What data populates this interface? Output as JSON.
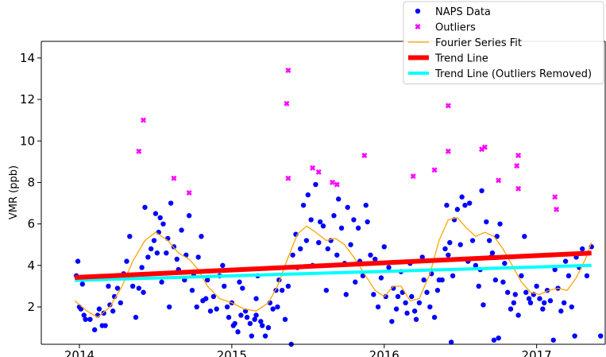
{
  "chart_data": {
    "type": "scatter",
    "title": "",
    "xlabel": "",
    "ylabel": "VMR (ppb)",
    "xlim": [
      2013.75,
      2017.45
    ],
    "ylim": [
      0.2,
      14.8
    ],
    "x_ticks": [
      2014,
      2015,
      2016,
      2017
    ],
    "x_tick_labels": [
      "2014",
      "2015",
      "2016",
      "2017"
    ],
    "y_ticks": [
      2,
      4,
      6,
      8,
      10,
      12,
      14
    ],
    "y_tick_labels": [
      "2",
      "4",
      "6",
      "8",
      "10",
      "12",
      "14"
    ],
    "grid": false,
    "legend_position": "top-right",
    "colors": {
      "naps": "#0000ff",
      "outliers": "#ff00ff",
      "fourier": "#ffa500",
      "trend": "#ff0000",
      "trend_removed": "#00ffff"
    },
    "series": [
      {
        "name": "NAPS Data",
        "kind": "scatter",
        "points": [
          [
            2013.98,
            3.5
          ],
          [
            2013.99,
            4.2
          ],
          [
            2014.0,
            2.0
          ],
          [
            2014.01,
            1.9
          ],
          [
            2014.02,
            3.1
          ],
          [
            2014.03,
            1.6
          ],
          [
            2014.04,
            1.4
          ],
          [
            2014.07,
            1.4
          ],
          [
            2014.1,
            0.9
          ],
          [
            2014.12,
            1.6
          ],
          [
            2014.13,
            1.9
          ],
          [
            2014.15,
            1.1
          ],
          [
            2014.16,
            1.7
          ],
          [
            2014.17,
            1.1
          ],
          [
            2014.19,
            3.0
          ],
          [
            2014.2,
            2.1
          ],
          [
            2014.22,
            1.8
          ],
          [
            2014.23,
            2.5
          ],
          [
            2014.25,
            2.9
          ],
          [
            2014.27,
            2.2
          ],
          [
            2014.29,
            3.6
          ],
          [
            2014.31,
            4.2
          ],
          [
            2014.33,
            5.4
          ],
          [
            2014.35,
            3.0
          ],
          [
            2014.37,
            1.5
          ],
          [
            2014.39,
            2.9
          ],
          [
            2014.41,
            3.9
          ],
          [
            2014.42,
            2.7
          ],
          [
            2014.43,
            6.8
          ],
          [
            2014.45,
            4.4
          ],
          [
            2014.47,
            4.8
          ],
          [
            2014.49,
            5.2
          ],
          [
            2014.5,
            6.5
          ],
          [
            2014.51,
            4.6
          ],
          [
            2014.52,
            5.6
          ],
          [
            2014.53,
            6.3
          ],
          [
            2014.54,
            3.2
          ],
          [
            2014.55,
            6.0
          ],
          [
            2014.57,
            4.6
          ],
          [
            2014.58,
            5.3
          ],
          [
            2014.59,
            2.0
          ],
          [
            2014.6,
            7.0
          ],
          [
            2014.62,
            4.9
          ],
          [
            2014.64,
            4.3
          ],
          [
            2014.65,
            3.8
          ],
          [
            2014.67,
            5.7
          ],
          [
            2014.69,
            3.3
          ],
          [
            2014.7,
            4.5
          ],
          [
            2014.72,
            6.4
          ],
          [
            2014.74,
            2.8
          ],
          [
            2014.75,
            3.5
          ],
          [
            2014.77,
            2.0
          ],
          [
            2014.78,
            4.4
          ],
          [
            2014.8,
            5.4
          ],
          [
            2014.81,
            2.3
          ],
          [
            2014.83,
            2.4
          ],
          [
            2014.84,
            3.3
          ],
          [
            2014.86,
            1.8
          ],
          [
            2014.88,
            2.5
          ],
          [
            2014.9,
            1.9
          ],
          [
            2014.92,
            3.5
          ],
          [
            2014.94,
            4.0
          ],
          [
            2014.95,
            3.0
          ],
          [
            2014.97,
            2.0
          ],
          [
            2014.98,
            1.5
          ],
          [
            2015.0,
            2.2
          ],
          [
            2015.01,
            1.1
          ],
          [
            2015.02,
            1.2
          ],
          [
            2015.04,
            0.8
          ],
          [
            2015.05,
            3.2
          ],
          [
            2015.06,
            1.6
          ],
          [
            2015.07,
            2.9
          ],
          [
            2015.09,
            1.8
          ],
          [
            2015.1,
            1.5
          ],
          [
            2015.12,
            1.2
          ],
          [
            2015.13,
            0.6
          ],
          [
            2015.15,
            1.4
          ],
          [
            2015.16,
            2.4
          ],
          [
            2015.17,
            3.5
          ],
          [
            2015.19,
            1.3
          ],
          [
            2015.2,
            1.1
          ],
          [
            2015.22,
            0.6
          ],
          [
            2015.24,
            1.0
          ],
          [
            2015.25,
            2.2
          ],
          [
            2015.27,
            1.9
          ],
          [
            2015.29,
            2.8
          ],
          [
            2015.3,
            2.0
          ],
          [
            2015.31,
            3.3
          ],
          [
            2015.33,
            2.8
          ],
          [
            2015.35,
            1.4
          ],
          [
            2015.37,
            3.0
          ],
          [
            2015.39,
            0.2
          ],
          [
            2015.4,
            4.5
          ],
          [
            2015.42,
            5.5
          ],
          [
            2015.43,
            3.9
          ],
          [
            2015.45,
            4.8
          ],
          [
            2015.47,
            6.9
          ],
          [
            2015.49,
            5.2
          ],
          [
            2015.5,
            7.4
          ],
          [
            2015.52,
            6.2
          ],
          [
            2015.53,
            4.0
          ],
          [
            2015.55,
            7.9
          ],
          [
            2015.57,
            5.1
          ],
          [
            2015.58,
            6.1
          ],
          [
            2015.6,
            5.9
          ],
          [
            2015.62,
            2.8
          ],
          [
            2015.63,
            4.8
          ],
          [
            2015.65,
            5.2
          ],
          [
            2015.67,
            6.4
          ],
          [
            2015.69,
            4.5
          ],
          [
            2015.7,
            7.2
          ],
          [
            2015.72,
            5.8
          ],
          [
            2015.74,
            4.1
          ],
          [
            2015.75,
            2.6
          ],
          [
            2015.76,
            6.8
          ],
          [
            2015.78,
            5.0
          ],
          [
            2015.8,
            6.2
          ],
          [
            2015.81,
            3.2
          ],
          [
            2015.83,
            5.8
          ],
          [
            2015.84,
            4.2
          ],
          [
            2015.86,
            3.5
          ],
          [
            2015.88,
            6.9
          ],
          [
            2015.89,
            6.1
          ],
          [
            2015.91,
            4.5
          ],
          [
            2015.93,
            2.6
          ],
          [
            2015.94,
            4.3
          ],
          [
            2015.96,
            2.0
          ],
          [
            2015.98,
            3.4
          ],
          [
            2016.0,
            4.9
          ],
          [
            2016.01,
            2.5
          ],
          [
            2016.03,
            3.9
          ],
          [
            2016.05,
            1.3
          ],
          [
            2016.06,
            2.9
          ],
          [
            2016.08,
            1.9
          ],
          [
            2016.09,
            2.5
          ],
          [
            2016.11,
            3.7
          ],
          [
            2016.12,
            2.7
          ],
          [
            2016.14,
            2.2
          ],
          [
            2016.15,
            1.7
          ],
          [
            2016.17,
            4.1
          ],
          [
            2016.18,
            2.5
          ],
          [
            2016.2,
            1.8
          ],
          [
            2016.21,
            1.4
          ],
          [
            2016.23,
            2.2
          ],
          [
            2016.25,
            4.4
          ],
          [
            2016.26,
            3.3
          ],
          [
            2016.28,
            2.7
          ],
          [
            2016.3,
            2.0
          ],
          [
            2016.31,
            3.6
          ],
          [
            2016.33,
            1.5
          ],
          [
            2016.35,
            2.8
          ],
          [
            2016.36,
            3.3
          ],
          [
            2016.38,
            3.3
          ],
          [
            2016.4,
            4.8
          ],
          [
            2016.41,
            6.9
          ],
          [
            2016.42,
            4.5
          ],
          [
            2016.43,
            5.1
          ],
          [
            2016.45,
            3.5
          ],
          [
            2016.46,
            6.2
          ],
          [
            2016.48,
            6.7
          ],
          [
            2016.5,
            5.0
          ],
          [
            2016.51,
            7.3
          ],
          [
            2016.53,
            6.9
          ],
          [
            2016.55,
            4.2
          ],
          [
            2016.56,
            7.0
          ],
          [
            2016.58,
            5.2
          ],
          [
            2016.6,
            4.0
          ],
          [
            2016.62,
            3.0
          ],
          [
            2016.63,
            3.8
          ],
          [
            2016.64,
            7.6
          ],
          [
            2016.65,
            2.1
          ],
          [
            2016.67,
            6.1
          ],
          [
            2016.69,
            5.2
          ],
          [
            2016.7,
            4.4
          ],
          [
            2016.71,
            4.6
          ],
          [
            2016.73,
            3.3
          ],
          [
            2016.74,
            5.4
          ],
          [
            2016.76,
            6.0
          ],
          [
            2016.78,
            3.2
          ],
          [
            2016.79,
            4.1
          ],
          [
            2016.81,
            2.7
          ],
          [
            2016.83,
            1.9
          ],
          [
            2016.85,
            2.2
          ],
          [
            2016.86,
            2.6
          ],
          [
            2016.88,
            1.6
          ],
          [
            2016.9,
            3.5
          ],
          [
            2016.92,
            5.4
          ],
          [
            2016.93,
            2.7
          ],
          [
            2016.95,
            2.4
          ],
          [
            2016.96,
            2.2
          ],
          [
            2016.98,
            2.6
          ],
          [
            2017.0,
            3.0
          ],
          [
            2017.02,
            2.4
          ],
          [
            2017.04,
            1.9
          ],
          [
            2017.05,
            2.2
          ],
          [
            2017.07,
            2.8
          ],
          [
            2017.09,
            2.3
          ],
          [
            2017.11,
            0.4
          ],
          [
            2017.12,
            3.8
          ],
          [
            2017.14,
            2.9
          ],
          [
            2017.16,
            1.8
          ],
          [
            2017.18,
            2.2
          ],
          [
            2017.19,
            4.2
          ],
          [
            2017.21,
            3.5
          ],
          [
            2017.23,
            2.0
          ],
          [
            2017.25,
            0.6
          ],
          [
            2017.26,
            4.4
          ],
          [
            2017.28,
            3.9
          ],
          [
            2017.3,
            4.8
          ],
          [
            2017.33,
            3.5
          ],
          [
            2017.36,
            4.9
          ],
          [
            2017.42,
            0.6
          ],
          [
            2016.44,
            0.3
          ],
          [
            2016.72,
            0.4
          ],
          [
            2016.75,
            0.5
          ],
          [
            2015.16,
            1.6
          ]
        ]
      },
      {
        "name": "Outliers",
        "kind": "scatter",
        "points": [
          [
            2014.39,
            9.5
          ],
          [
            2014.42,
            11.0
          ],
          [
            2014.62,
            8.2
          ],
          [
            2014.72,
            7.5
          ],
          [
            2015.36,
            11.8
          ],
          [
            2015.37,
            13.4
          ],
          [
            2015.37,
            8.2
          ],
          [
            2015.53,
            8.7
          ],
          [
            2015.57,
            8.5
          ],
          [
            2015.66,
            8.0
          ],
          [
            2015.69,
            7.9
          ],
          [
            2015.87,
            9.3
          ],
          [
            2016.19,
            8.3
          ],
          [
            2016.33,
            8.6
          ],
          [
            2016.42,
            9.5
          ],
          [
            2016.42,
            11.7
          ],
          [
            2016.64,
            9.6
          ],
          [
            2016.66,
            9.7
          ],
          [
            2016.75,
            8.1
          ],
          [
            2016.87,
            8.8
          ],
          [
            2016.88,
            7.7
          ],
          [
            2016.88,
            9.3
          ],
          [
            2017.12,
            7.3
          ],
          [
            2017.13,
            6.7
          ]
        ]
      },
      {
        "name": "Fourier Series Fit",
        "kind": "line",
        "points": [
          [
            2013.97,
            2.3
          ],
          [
            2014.05,
            1.8
          ],
          [
            2014.12,
            1.5
          ],
          [
            2014.2,
            2.0
          ],
          [
            2014.28,
            3.0
          ],
          [
            2014.35,
            4.2
          ],
          [
            2014.43,
            5.2
          ],
          [
            2014.5,
            5.6
          ],
          [
            2014.58,
            5.2
          ],
          [
            2014.65,
            4.6
          ],
          [
            2014.72,
            4.3
          ],
          [
            2014.78,
            3.8
          ],
          [
            2014.84,
            3.0
          ],
          [
            2014.92,
            2.4
          ],
          [
            2015.0,
            2.2
          ],
          [
            2015.08,
            1.9
          ],
          [
            2015.16,
            1.8
          ],
          [
            2015.24,
            2.2
          ],
          [
            2015.3,
            3.0
          ],
          [
            2015.37,
            4.4
          ],
          [
            2015.43,
            5.5
          ],
          [
            2015.49,
            5.9
          ],
          [
            2015.55,
            5.6
          ],
          [
            2015.62,
            5.2
          ],
          [
            2015.68,
            5.3
          ],
          [
            2015.74,
            5.0
          ],
          [
            2015.8,
            4.4
          ],
          [
            2015.87,
            3.6
          ],
          [
            2015.94,
            2.8
          ],
          [
            2016.0,
            2.5
          ],
          [
            2016.06,
            3.0
          ],
          [
            2016.11,
            3.0
          ],
          [
            2016.17,
            2.3
          ],
          [
            2016.23,
            2.4
          ],
          [
            2016.3,
            3.6
          ],
          [
            2016.36,
            5.2
          ],
          [
            2016.42,
            6.2
          ],
          [
            2016.48,
            6.3
          ],
          [
            2016.54,
            5.8
          ],
          [
            2016.6,
            5.4
          ],
          [
            2016.66,
            5.6
          ],
          [
            2016.72,
            5.4
          ],
          [
            2016.78,
            4.8
          ],
          [
            2016.84,
            4.0
          ],
          [
            2016.9,
            3.2
          ],
          [
            2016.96,
            2.7
          ],
          [
            2017.02,
            2.6
          ],
          [
            2017.08,
            2.8
          ],
          [
            2017.14,
            2.9
          ],
          [
            2017.2,
            2.8
          ],
          [
            2017.26,
            3.4
          ],
          [
            2017.32,
            4.3
          ],
          [
            2017.36,
            5.1
          ]
        ]
      },
      {
        "name": "Trend Line",
        "kind": "line",
        "points": [
          [
            2013.97,
            3.42
          ],
          [
            2017.36,
            4.6
          ]
        ]
      },
      {
        "name": "Trend Line (Outliers Removed)",
        "kind": "line",
        "points": [
          [
            2013.97,
            3.28
          ],
          [
            2017.36,
            4.0
          ]
        ]
      }
    ]
  }
}
